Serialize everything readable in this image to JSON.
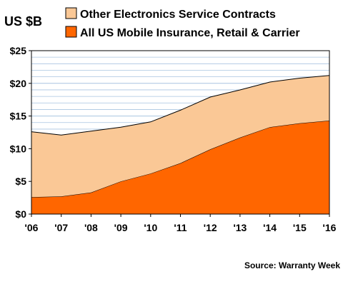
{
  "chart_data": {
    "type": "area",
    "stacked": true,
    "ylabel": "US $B",
    "categories": [
      "'06",
      "'07",
      "'08",
      "'09",
      "'10",
      "'11",
      "'12",
      "'13",
      "'14",
      "'15",
      "'16"
    ],
    "y_tick_labels": [
      "$0",
      "$5",
      "$10",
      "$15",
      "$20",
      "$25"
    ],
    "ylim": [
      0,
      25
    ],
    "grid": true,
    "legend_position": "top",
    "series": [
      {
        "name": "All US Mobile Insurance, Retail & Carrier",
        "color": "#ff6600",
        "values": [
          2.6,
          2.7,
          3.3,
          5.0,
          6.2,
          7.8,
          9.9,
          11.7,
          13.3,
          13.9,
          14.3
        ]
      },
      {
        "name": "Other Electronics Service Contracts",
        "color": "#fac896",
        "values": [
          10.0,
          9.4,
          9.4,
          8.3,
          7.9,
          8.1,
          8.0,
          7.3,
          6.9,
          6.9,
          6.9
        ]
      }
    ],
    "legend_order": [
      1,
      0
    ],
    "source": "Source: Warranty Week"
  }
}
